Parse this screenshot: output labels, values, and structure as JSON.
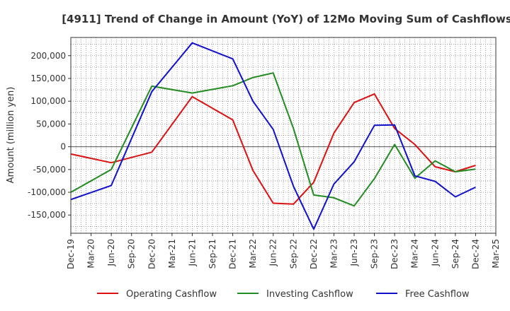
{
  "chart_data": {
    "type": "line",
    "title": "[4911]  Trend of Change in Amount (YoY) of 12Mo Moving Sum of Cashflows",
    "xlabel": "",
    "ylabel": "Amount (million yen)",
    "ylim": [
      -190000,
      240000
    ],
    "y_ticks": [
      200000,
      150000,
      100000,
      50000,
      0,
      -50000,
      -100000,
      -150000
    ],
    "y_tick_labels": [
      "200,000",
      "150,000",
      "100,000",
      "50,000",
      "0",
      "-50,000",
      "-100,000",
      "-150,000"
    ],
    "categories": [
      "Dec-19",
      "Mar-20",
      "Jun-20",
      "Sep-20",
      "Dec-20",
      "Mar-21",
      "Jun-21",
      "Sep-21",
      "Dec-21",
      "Mar-22",
      "Jun-22",
      "Sep-22",
      "Dec-22",
      "Mar-23",
      "Jun-23",
      "Sep-23",
      "Dec-23",
      "Mar-24",
      "Jun-24",
      "Sep-24",
      "Dec-24",
      "Mar-25"
    ],
    "grid": true,
    "legend_position": "bottom",
    "series": [
      {
        "name": "Operating Cashflow",
        "color": "#dd1111",
        "values": [
          -16000,
          null,
          -35000,
          null,
          -12000,
          null,
          110000,
          null,
          59000,
          -52000,
          -124000,
          -126000,
          -78000,
          30000,
          97000,
          116000,
          40000,
          5000,
          -44000,
          -55000,
          -41000,
          null
        ]
      },
      {
        "name": "Investing Cashflow",
        "color": "#228b22",
        "values": [
          -100000,
          null,
          -50000,
          null,
          133000,
          null,
          118000,
          null,
          134000,
          152000,
          162000,
          40000,
          -106000,
          -112000,
          -130000,
          -70000,
          5000,
          -69000,
          -31000,
          -55000,
          -49000,
          null
        ]
      },
      {
        "name": "Free Cashflow",
        "color": "#1111cc",
        "values": [
          -116000,
          null,
          -85000,
          null,
          121000,
          null,
          228000,
          null,
          193000,
          100000,
          38000,
          -87000,
          -181000,
          -82000,
          -33000,
          47000,
          48000,
          -64000,
          -76000,
          -110000,
          -89000,
          null
        ]
      }
    ]
  }
}
